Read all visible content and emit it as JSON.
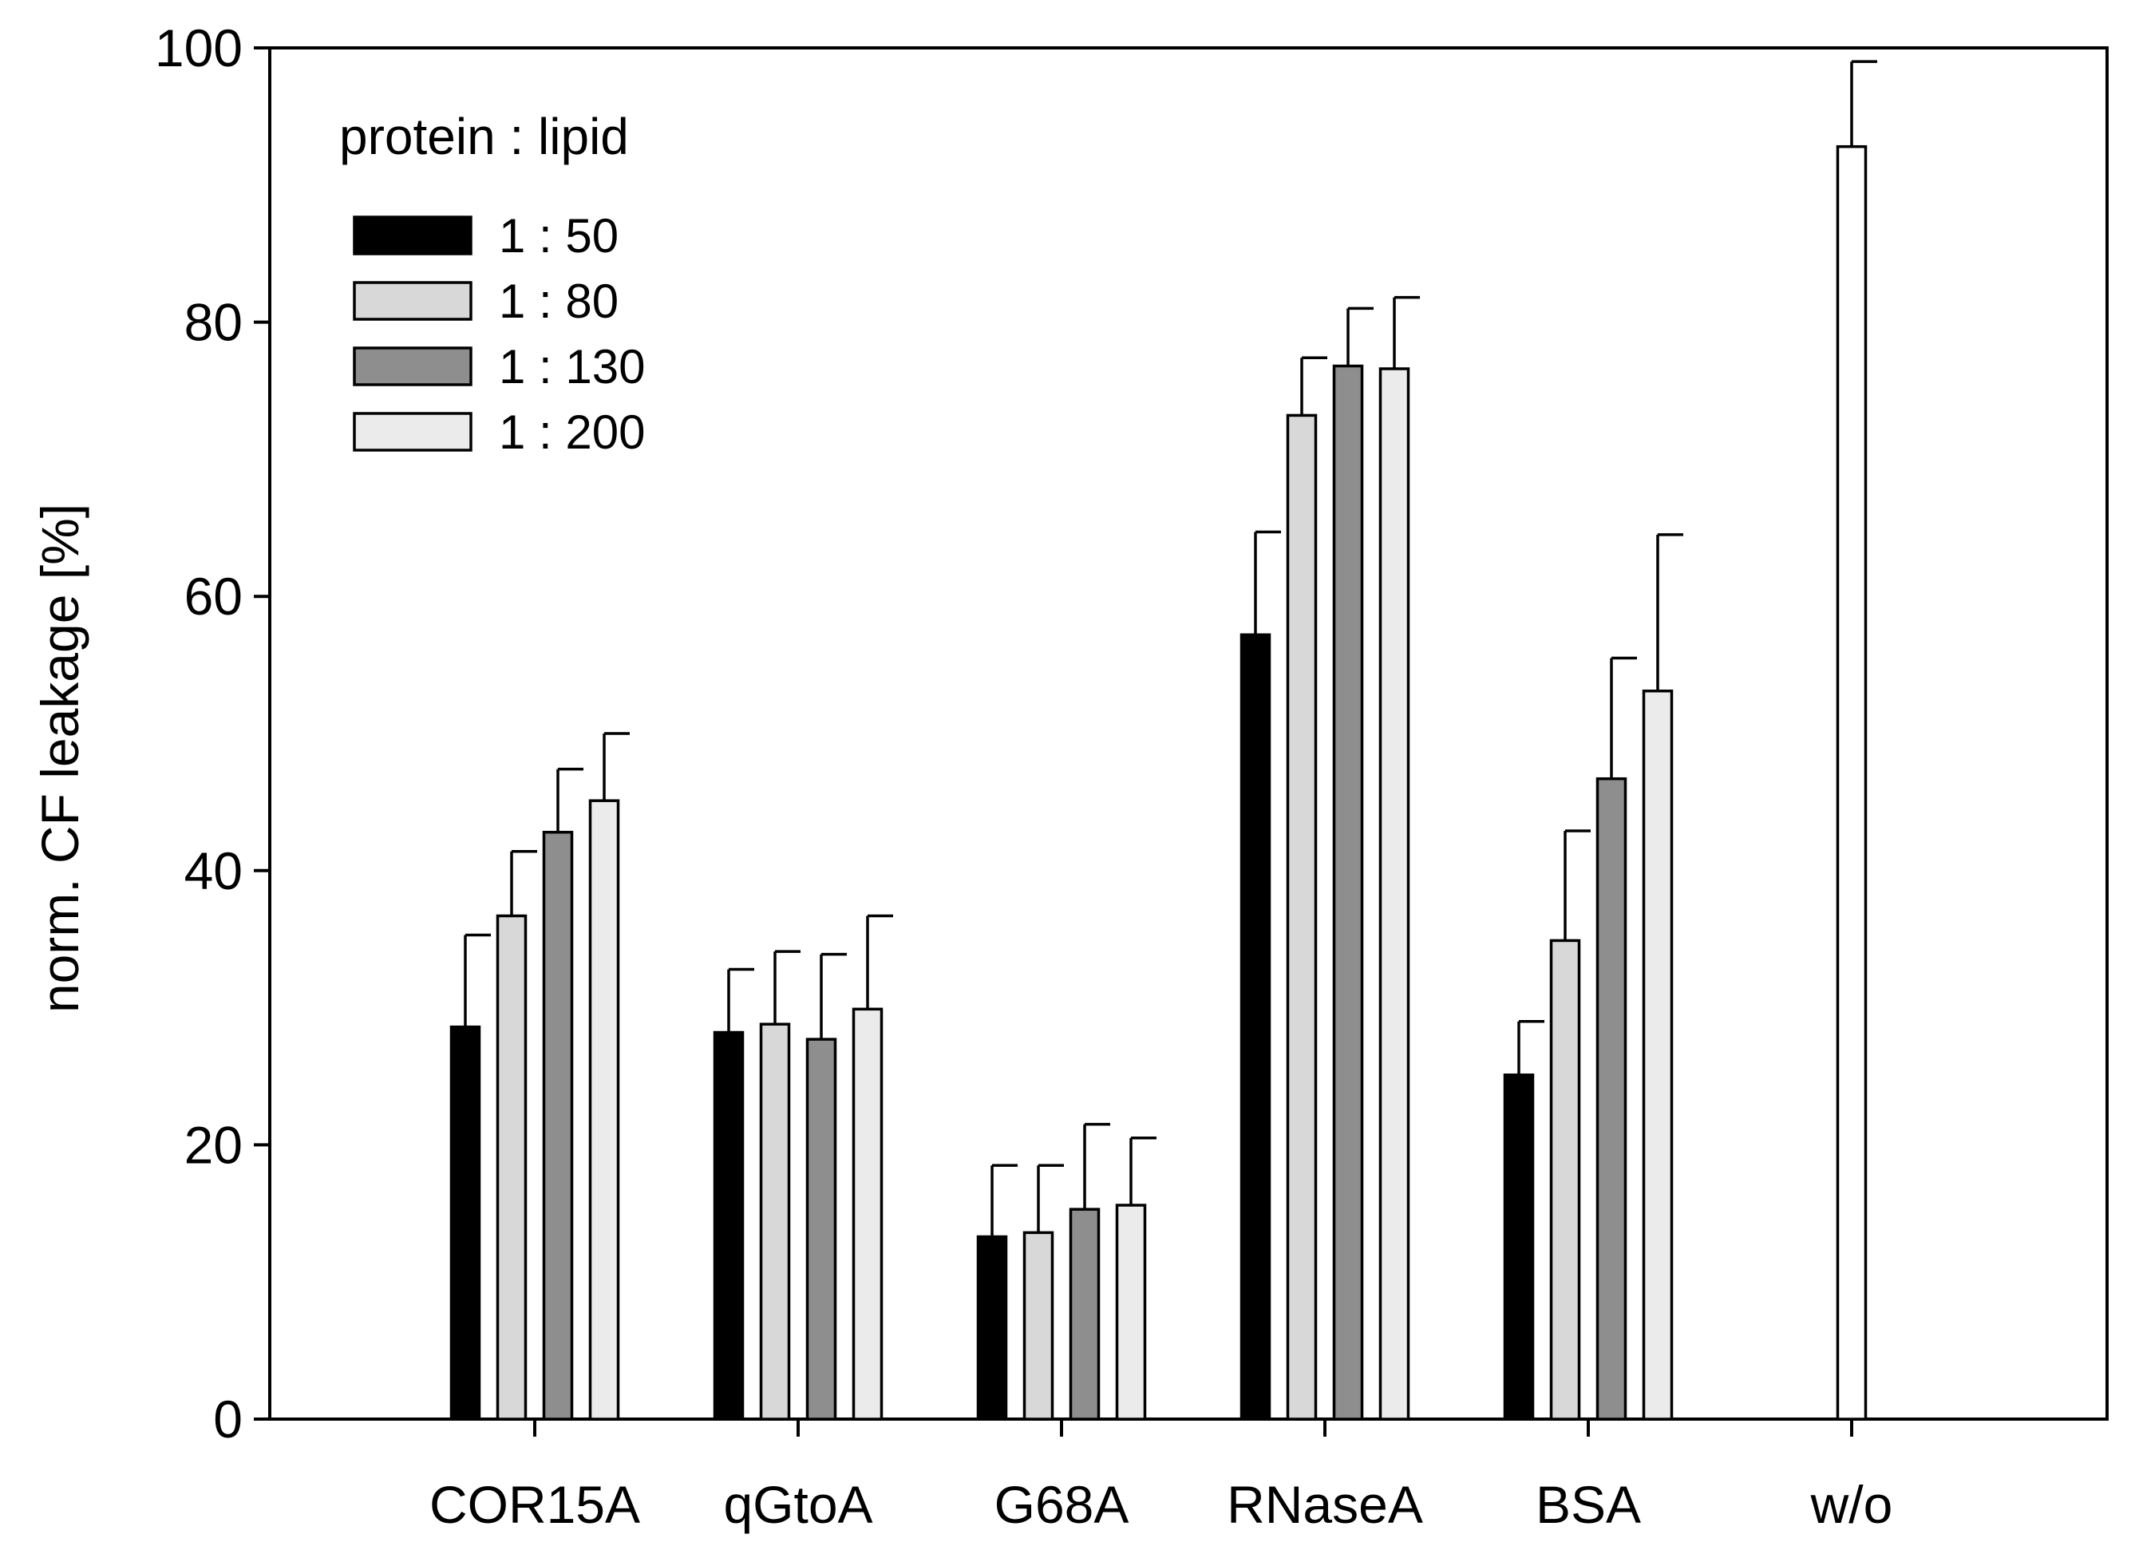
{
  "chart_data": {
    "type": "bar",
    "title": "",
    "xlabel": "",
    "ylabel": "norm. CF leakage [%]",
    "ylim": [
      0,
      100
    ],
    "yticks": [
      0,
      20,
      40,
      60,
      80,
      100
    ],
    "grid": false,
    "legend": {
      "title": "protein : lipid",
      "placement": "top-left"
    },
    "categories": [
      "COR15A",
      "qGtoA",
      "G68A",
      "RNaseA",
      "BSA",
      "w/o"
    ],
    "series": [
      {
        "name": "1 : 50",
        "color": "#000000",
        "values": [
          28.6,
          28.2,
          13.3,
          57.2,
          25.1,
          null
        ],
        "errors": [
          6.7,
          4.6,
          5.2,
          7.5,
          3.9,
          null
        ]
      },
      {
        "name": "1 : 80",
        "color": "#d8d8d8",
        "values": [
          36.7,
          28.8,
          13.6,
          73.2,
          34.9,
          null
        ],
        "errors": [
          4.7,
          5.3,
          4.9,
          4.2,
          8.0,
          null
        ]
      },
      {
        "name": "1 : 130",
        "color": "#8e8e8e",
        "values": [
          42.8,
          27.7,
          15.3,
          76.8,
          46.7,
          null
        ],
        "errors": [
          4.6,
          6.2,
          6.2,
          4.2,
          8.8,
          null
        ]
      },
      {
        "name": "1 : 200",
        "color": "#ebebeb",
        "values": [
          45.1,
          29.9,
          15.6,
          76.6,
          53.1,
          null
        ],
        "errors": [
          4.9,
          6.8,
          4.9,
          5.2,
          11.4,
          null
        ]
      }
    ],
    "extra_bars": [
      {
        "category": "w/o",
        "value": 92.8,
        "error": 6.2,
        "color": "#ffffff"
      }
    ]
  }
}
